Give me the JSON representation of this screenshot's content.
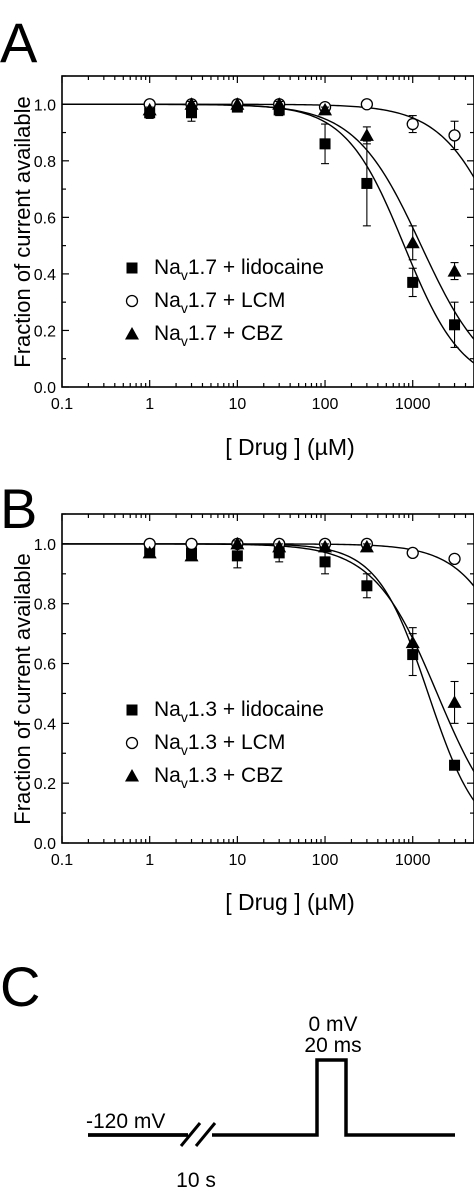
{
  "figure": {
    "panel_labels": [
      "A",
      "B",
      "C"
    ]
  },
  "chart_data": [
    {
      "type": "scatter",
      "panel": "A",
      "xlabel": "[ Drug ] (µM)",
      "ylabel": "Fraction of current available",
      "xscale": "log",
      "xlim": [
        0.1,
        5000
      ],
      "ylim": [
        0.0,
        1.1
      ],
      "x_ticks": [
        "0.1",
        "1",
        "10",
        "100",
        "1000"
      ],
      "y_ticks": [
        "0.0",
        "0.2",
        "0.4",
        "0.6",
        "0.8",
        "1.0"
      ],
      "legend_position": "lower-left",
      "series": [
        {
          "name_base": "Na",
          "name_sub": "v",
          "name_rest": "1.7 + lidocaine",
          "marker": "square",
          "fit_ic50": 800,
          "fit_hill": 1.3,
          "x": [
            1,
            3,
            10,
            30,
            100,
            300,
            1000,
            3000
          ],
          "y": [
            0.97,
            0.97,
            0.99,
            0.98,
            0.86,
            0.72,
            0.37,
            0.22
          ],
          "err": [
            0.02,
            0.03,
            0.01,
            0.02,
            0.07,
            0.15,
            0.05,
            0.08
          ]
        },
        {
          "name_base": "Na",
          "name_sub": "v",
          "name_rest": "1.7 + LCM",
          "marker": "circle",
          "fit_ic50": 12000,
          "fit_hill": 1.2,
          "x": [
            1,
            3,
            10,
            30,
            100,
            300,
            1000,
            3000
          ],
          "y": [
            1.0,
            1.0,
            1.0,
            1.0,
            0.99,
            1.0,
            0.93,
            0.89
          ],
          "err": [
            0.0,
            0.0,
            0.0,
            0.0,
            0.0,
            0.01,
            0.03,
            0.05
          ]
        },
        {
          "name_base": "Na",
          "name_sub": "v",
          "name_rest": "1.7 + CBZ",
          "marker": "triangle",
          "fit_ic50": 1250,
          "fit_hill": 1.15,
          "x": [
            1,
            3,
            10,
            30,
            100,
            300,
            1000,
            3000
          ],
          "y": [
            0.98,
            1.0,
            1.0,
            1.0,
            0.98,
            0.89,
            0.51,
            0.41
          ],
          "err": [
            0.01,
            0.01,
            0.0,
            0.01,
            0.01,
            0.03,
            0.06,
            0.03
          ]
        }
      ]
    },
    {
      "type": "scatter",
      "panel": "B",
      "xlabel": "[ Drug ] (µM)",
      "ylabel": "Fraction of current available",
      "xscale": "log",
      "xlim": [
        0.1,
        5000
      ],
      "ylim": [
        0.0,
        1.1
      ],
      "x_ticks": [
        "0.1",
        "1",
        "10",
        "100",
        "1000"
      ],
      "y_ticks": [
        "0.0",
        "0.2",
        "0.4",
        "0.6",
        "0.8",
        "1.0"
      ],
      "legend_position": "lower-left",
      "series": [
        {
          "name_base": "Na",
          "name_sub": "v",
          "name_rest": "1.3 + lidocaine",
          "marker": "square",
          "fit_ic50": 1500,
          "fit_hill": 1.5,
          "x": [
            1,
            3,
            10,
            30,
            100,
            300,
            1000,
            3000
          ],
          "y": [
            0.98,
            0.97,
            0.96,
            0.97,
            0.94,
            0.86,
            0.63,
            0.26
          ],
          "err": [
            0.01,
            0.02,
            0.04,
            0.03,
            0.04,
            0.04,
            0.07,
            0.01
          ]
        },
        {
          "name_base": "Na",
          "name_sub": "v",
          "name_rest": "1.3 + LCM",
          "marker": "circle",
          "fit_ic50": 20000,
          "fit_hill": 1.3,
          "x": [
            1,
            3,
            10,
            30,
            100,
            300,
            1000,
            3000
          ],
          "y": [
            1.0,
            1.0,
            1.0,
            1.0,
            1.0,
            1.0,
            0.97,
            0.95
          ],
          "err": [
            0.0,
            0.0,
            0.0,
            0.0,
            0.0,
            0.01,
            0.01,
            0.01
          ]
        },
        {
          "name_base": "Na",
          "name_sub": "v",
          "name_rest": "1.3 + CBZ",
          "marker": "triangle",
          "fit_ic50": 1900,
          "fit_hill": 1.2,
          "x": [
            1,
            3,
            10,
            30,
            100,
            300,
            1000,
            3000
          ],
          "y": [
            0.97,
            0.96,
            1.0,
            0.99,
            0.99,
            0.99,
            0.67,
            0.47
          ],
          "err": [
            0.01,
            0.01,
            0.01,
            0.01,
            0.01,
            0.01,
            0.05,
            0.07
          ]
        }
      ]
    }
  ],
  "protocol": {
    "holding_label": "-120 mV",
    "step_voltage_label": "0 mV",
    "step_duration_label": "20 ms",
    "gap_label": "10 s"
  }
}
